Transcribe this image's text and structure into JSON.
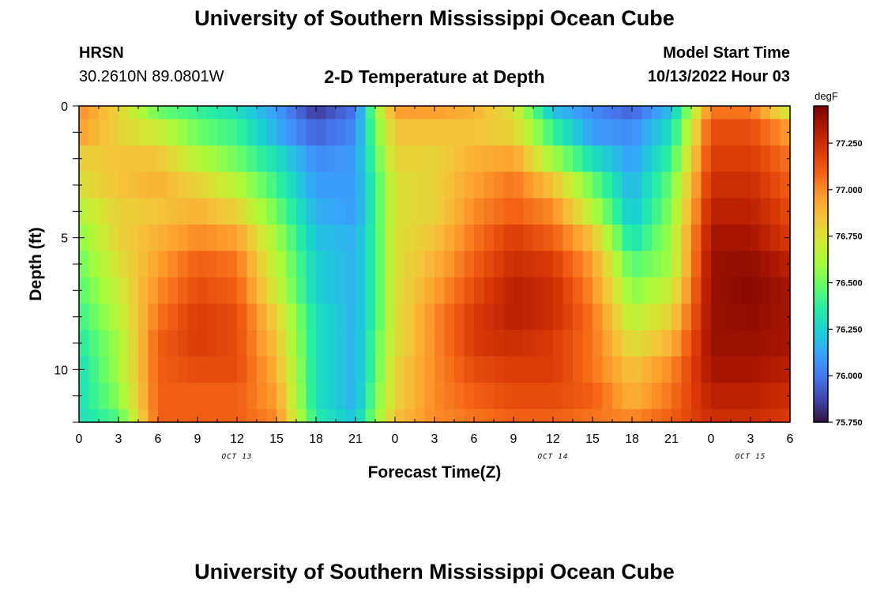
{
  "header": {
    "title": "University of Southern Mississippi Ocean Cube",
    "station_name": "HRSN",
    "station_coords": "30.2610N  89.0801W",
    "chart_subtitle": "2-D Temperature at Depth",
    "model_start_label": "Model Start Time",
    "model_start_value": "10/13/2022 Hour 03"
  },
  "footer": {
    "title": "University of Southern Mississippi Ocean Cube"
  },
  "chart_data": {
    "type": "heatmap",
    "title": "2-D Temperature at Depth",
    "xlabel": "Forecast Time(Z)",
    "ylabel": "Depth (ft)",
    "colorbar_label": "degF",
    "x_range_hours": [
      0,
      54
    ],
    "y_range_ft": [
      0,
      12
    ],
    "y_inverted": true,
    "x_ticks": [
      {
        "h": 0,
        "label": "0"
      },
      {
        "h": 3,
        "label": "3"
      },
      {
        "h": 6,
        "label": "6"
      },
      {
        "h": 9,
        "label": "9"
      },
      {
        "h": 12,
        "label": "12"
      },
      {
        "h": 15,
        "label": "15"
      },
      {
        "h": 18,
        "label": "18"
      },
      {
        "h": 21,
        "label": "21"
      },
      {
        "h": 24,
        "label": "0"
      },
      {
        "h": 27,
        "label": "3"
      },
      {
        "h": 30,
        "label": "6"
      },
      {
        "h": 33,
        "label": "9"
      },
      {
        "h": 36,
        "label": "12"
      },
      {
        "h": 39,
        "label": "15"
      },
      {
        "h": 42,
        "label": "18"
      },
      {
        "h": 45,
        "label": "21"
      },
      {
        "h": 48,
        "label": "0"
      },
      {
        "h": 51,
        "label": "3"
      },
      {
        "h": 54,
        "label": "6"
      }
    ],
    "date_labels": [
      {
        "h": 12,
        "label": "OCT 13"
      },
      {
        "h": 36,
        "label": "OCT 14"
      },
      {
        "h": 51,
        "label": "OCT 15"
      }
    ],
    "y_ticks": [
      {
        "v": 0,
        "label": "0"
      },
      {
        "v": 5,
        "label": "5"
      },
      {
        "v": 10,
        "label": "10"
      }
    ],
    "colorbar": {
      "min": 75.75,
      "max": 77.45,
      "ticks": [
        {
          "v": 75.75,
          "label": "75.750"
        },
        {
          "v": 76.0,
          "label": "76.000"
        },
        {
          "v": 76.25,
          "label": "76.250"
        },
        {
          "v": 76.5,
          "label": "76.500"
        },
        {
          "v": 76.75,
          "label": "76.750"
        },
        {
          "v": 77.0,
          "label": "77.000"
        },
        {
          "v": 77.25,
          "label": "77.250"
        }
      ]
    },
    "depth_levels_ft": [
      0.25,
      1.0,
      2.0,
      3.0,
      4.0,
      5.0,
      6.0,
      7.0,
      8.0,
      9.0,
      10.0,
      11.0,
      11.75
    ],
    "time_hours": [
      0,
      3,
      6,
      9,
      12,
      15,
      18,
      21,
      22.5,
      24,
      27,
      30,
      33,
      36,
      39,
      42,
      45,
      48,
      51,
      54
    ],
    "temperatures_degF": [
      [
        77.0,
        76.8,
        76.5,
        76.4,
        76.3,
        76.1,
        75.85,
        76.0,
        76.55,
        76.95,
        76.95,
        76.9,
        76.75,
        76.2,
        76.05,
        75.95,
        76.2,
        77.05,
        77.05,
        76.7
      ],
      [
        76.95,
        76.8,
        76.7,
        76.5,
        76.4,
        76.15,
        75.95,
        76.05,
        76.5,
        76.85,
        76.85,
        76.85,
        76.8,
        76.4,
        76.1,
        76.05,
        76.3,
        77.15,
        77.15,
        76.95
      ],
      [
        76.8,
        76.85,
        76.85,
        76.65,
        76.5,
        76.3,
        76.05,
        76.1,
        76.45,
        76.8,
        76.8,
        76.9,
        76.95,
        76.6,
        76.3,
        76.1,
        76.4,
        77.2,
        77.2,
        77.05
      ],
      [
        76.75,
        76.85,
        76.9,
        76.8,
        76.65,
        76.4,
        76.1,
        76.1,
        76.4,
        76.75,
        76.8,
        76.95,
        77.05,
        76.85,
        76.5,
        76.15,
        76.5,
        77.25,
        77.25,
        77.1
      ],
      [
        76.65,
        76.8,
        76.85,
        76.9,
        76.8,
        76.5,
        76.15,
        76.1,
        76.4,
        76.75,
        76.8,
        77.0,
        77.1,
        77.0,
        76.65,
        76.2,
        76.55,
        77.3,
        77.3,
        77.15
      ],
      [
        76.55,
        76.8,
        76.9,
        77.0,
        76.95,
        76.6,
        76.2,
        76.15,
        76.4,
        76.75,
        76.85,
        77.05,
        77.2,
        77.1,
        76.85,
        76.3,
        76.6,
        77.35,
        77.35,
        77.2
      ],
      [
        76.5,
        76.75,
        76.95,
        77.1,
        77.05,
        76.65,
        76.25,
        76.15,
        76.4,
        76.75,
        76.9,
        77.1,
        77.25,
        77.2,
        76.95,
        76.45,
        76.6,
        77.38,
        77.4,
        77.3
      ],
      [
        76.45,
        76.7,
        77.0,
        77.15,
        77.1,
        76.7,
        76.25,
        76.15,
        76.4,
        76.75,
        76.95,
        77.15,
        77.3,
        77.25,
        77.0,
        76.55,
        76.7,
        77.38,
        77.42,
        77.35
      ],
      [
        76.4,
        76.65,
        77.05,
        77.2,
        77.15,
        76.8,
        76.3,
        76.15,
        76.4,
        76.75,
        77.0,
        77.2,
        77.3,
        77.25,
        77.05,
        76.65,
        76.8,
        77.38,
        77.4,
        77.35
      ],
      [
        76.35,
        76.6,
        77.1,
        77.2,
        77.15,
        76.85,
        76.3,
        76.15,
        76.45,
        76.75,
        77.0,
        77.2,
        77.25,
        77.2,
        77.05,
        76.75,
        76.9,
        77.38,
        77.38,
        77.35
      ],
      [
        76.3,
        76.6,
        77.1,
        77.15,
        77.15,
        76.9,
        76.3,
        76.15,
        76.45,
        76.8,
        77.0,
        77.15,
        77.2,
        77.2,
        77.05,
        76.85,
        77.0,
        77.35,
        77.35,
        77.3
      ],
      [
        76.3,
        76.55,
        77.1,
        77.1,
        77.1,
        76.95,
        76.3,
        76.15,
        76.5,
        76.8,
        77.0,
        77.1,
        77.15,
        77.15,
        77.1,
        76.9,
        77.05,
        77.3,
        77.3,
        77.25
      ],
      [
        76.3,
        76.45,
        77.1,
        77.1,
        77.1,
        77.0,
        76.35,
        76.2,
        76.55,
        76.85,
        77.0,
        77.05,
        77.1,
        77.1,
        77.05,
        77.0,
        77.1,
        77.25,
        77.25,
        77.2
      ]
    ]
  },
  "palette": {
    "colormap": [
      "#30123b",
      "#4145ab",
      "#4675ed",
      "#39a2fc",
      "#1bcfd4",
      "#24eca6",
      "#61fc6c",
      "#a4fc3b",
      "#d1e834",
      "#f3c63a",
      "#fe9b2d",
      "#f36315",
      "#d93806",
      "#b11901",
      "#7a0402"
    ],
    "axis": "#000000",
    "background": "#ffffff"
  }
}
